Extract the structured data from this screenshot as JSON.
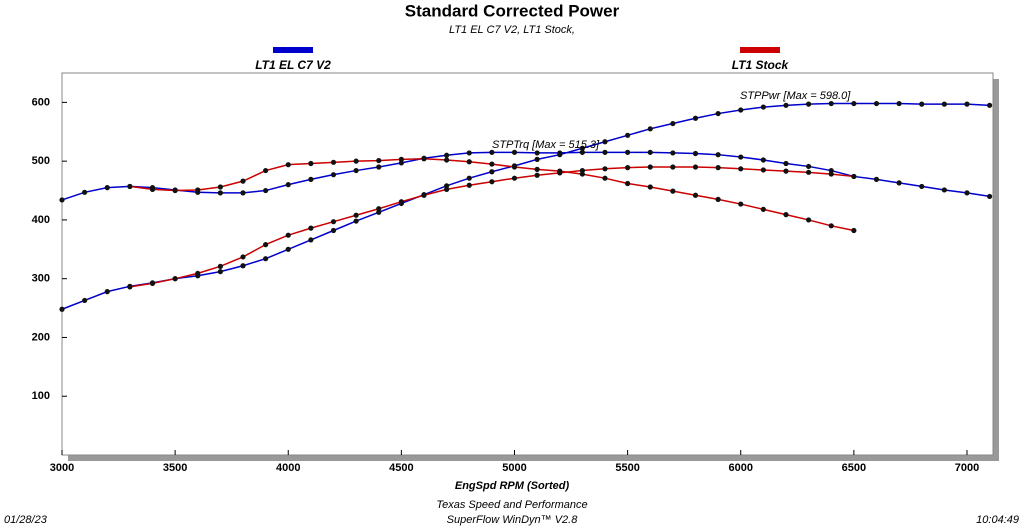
{
  "chart_data": {
    "type": "line",
    "title": "Standard Corrected Power",
    "subtitle": "LT1 EL C7 V2, LT1 Stock,",
    "x_label": "EngSpd  RPM   (Sorted)",
    "footer": [
      "Texas Speed and Performance",
      "SuperFlow WinDyn™ V2.8"
    ],
    "date": "01/28/23",
    "time": "10:04:49",
    "annotations": [
      {
        "text": "STPPwr [Max = 598.0]",
        "color": "#0000cc"
      },
      {
        "text": "STPTrq [Max = 515.3]",
        "color": "#0000cc"
      }
    ],
    "x": [
      3000,
      3100,
      3200,
      3300,
      3400,
      3500,
      3600,
      3700,
      3800,
      3900,
      4000,
      4100,
      4200,
      4300,
      4400,
      4500,
      4600,
      4700,
      4800,
      4900,
      5000,
      5100,
      5200,
      5300,
      5400,
      5500,
      5600,
      5700,
      5800,
      5900,
      6000,
      6100,
      6200,
      6300,
      6400,
      6500,
      6600,
      6700,
      6800,
      6900,
      7000,
      7100
    ],
    "series": [
      {
        "name": "LT1 EL C7 V2",
        "color": "#0000cc",
        "power": [
          248,
          263,
          278,
          287,
          293,
          300,
          305,
          312,
          322,
          334,
          350,
          366,
          382,
          398,
          413,
          428,
          443,
          458,
          471,
          482,
          492,
          503,
          511,
          522,
          533,
          544,
          555,
          564,
          573,
          581,
          587,
          592,
          595,
          597,
          598,
          598,
          598,
          598,
          597,
          597,
          597,
          595
        ],
        "torque": [
          434,
          447,
          455,
          457,
          455,
          451,
          447,
          446,
          446,
          450,
          460,
          469,
          477,
          484,
          490,
          497,
          505,
          510,
          514,
          515,
          515,
          514,
          514,
          515,
          515,
          515,
          515,
          514,
          513,
          511,
          507,
          502,
          496,
          491,
          484,
          474,
          469,
          463,
          457,
          451,
          446,
          440
        ]
      },
      {
        "name": "LT1 Stock",
        "color": "#cc0000",
        "power": [
          null,
          null,
          null,
          286,
          292,
          300,
          309,
          321,
          337,
          358,
          374,
          386,
          397,
          408,
          419,
          431,
          442,
          452,
          459,
          465,
          471,
          476,
          480,
          484,
          487,
          489,
          490,
          490,
          490,
          489,
          487,
          485,
          483,
          481,
          478,
          474,
          null,
          null,
          null,
          null,
          null,
          null
        ],
        "torque": [
          null,
          null,
          null,
          457,
          452,
          450,
          451,
          456,
          466,
          484,
          494,
          496,
          498,
          500,
          501,
          503,
          504,
          502,
          499,
          495,
          490,
          486,
          483,
          478,
          471,
          462,
          456,
          449,
          442,
          435,
          427,
          418,
          409,
          400,
          390,
          382,
          null,
          null,
          null,
          null,
          null,
          null
        ]
      }
    ],
    "xlim": [
      3000,
      7115
    ],
    "ylim": [
      0,
      650
    ],
    "xticks": [
      3000,
      3500,
      4000,
      4500,
      5000,
      5500,
      6000,
      6500,
      7000
    ],
    "yticks": [
      100,
      200,
      300,
      400,
      500,
      600
    ],
    "grid": false
  }
}
